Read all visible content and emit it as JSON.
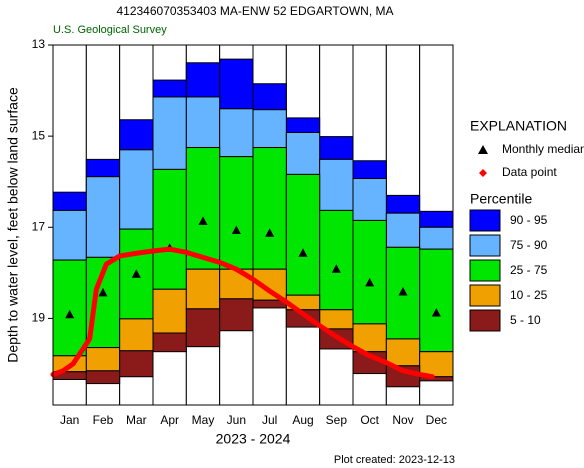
{
  "chart_data": {
    "type": "percentile",
    "title": "412346070353403 MA-ENW   52 EDGARTOWN, MA",
    "subtitle": "U.S. Geological Survey",
    "y_label": "Depth to water level, feet below land surface",
    "x_label": "2023 - 2024",
    "footer": "Plot created: 2023-12-13",
    "categories": [
      "Jan",
      "Feb",
      "Mar",
      "Apr",
      "May",
      "Jun",
      "Jul",
      "Aug",
      "Sep",
      "Oct",
      "Nov",
      "Dec"
    ],
    "ylim": [
      13,
      20.9
    ],
    "yticks": [
      13,
      15,
      17,
      19
    ],
    "y_inverted": true,
    "xlim": [
      0,
      12
    ],
    "legend_title": "EXPLANATION",
    "legend_subtitle": "Percentile",
    "series": [
      {
        "name": "90 - 95",
        "color": "#0000ff",
        "top": [
          16.23,
          15.51,
          14.64,
          13.77,
          13.39,
          13.31,
          13.85,
          14.6,
          15.01,
          15.54,
          16.3,
          16.65
        ],
        "bottom": [
          16.63,
          15.89,
          15.3,
          14.14,
          14.14,
          14.4,
          14.42,
          14.92,
          15.51,
          15.93,
          16.69,
          17.0
        ]
      },
      {
        "name": "75 - 90",
        "color": "#66b3ff",
        "top": [
          16.63,
          15.89,
          15.3,
          14.14,
          14.14,
          14.4,
          14.42,
          14.92,
          15.51,
          15.93,
          16.69,
          17.0
        ],
        "bottom": [
          17.72,
          17.66,
          17.04,
          15.73,
          15.25,
          15.45,
          15.25,
          15.84,
          16.63,
          16.85,
          17.44,
          17.48
        ]
      },
      {
        "name": "25 - 75",
        "color": "#00e600",
        "top": [
          17.72,
          17.66,
          17.04,
          15.73,
          15.25,
          15.45,
          15.25,
          15.84,
          16.63,
          16.85,
          17.44,
          17.48
        ],
        "bottom": [
          19.82,
          19.64,
          19.01,
          18.36,
          17.92,
          17.92,
          17.92,
          18.49,
          18.81,
          19.12,
          19.45,
          19.73
        ]
      },
      {
        "name": "10 - 25",
        "color": "#f0a000",
        "top": [
          19.82,
          19.64,
          19.01,
          18.36,
          17.92,
          17.92,
          17.92,
          18.49,
          18.81,
          19.12,
          19.45,
          19.73
        ],
        "bottom": [
          20.17,
          20.15,
          19.71,
          19.32,
          18.79,
          18.57,
          18.6,
          18.81,
          19.23,
          19.73,
          20.04,
          20.28
        ]
      },
      {
        "name": "5 - 10",
        "color": "#8b1a1a",
        "top": [
          20.17,
          20.15,
          19.71,
          19.32,
          18.79,
          18.57,
          18.6,
          18.81,
          19.23,
          19.73,
          20.04,
          20.28
        ],
        "bottom": [
          20.34,
          20.43,
          20.28,
          19.73,
          19.62,
          19.27,
          18.77,
          19.19,
          19.67,
          20.21,
          20.5,
          20.37
        ]
      }
    ],
    "median": {
      "name": "Monthly median",
      "color": "#000000",
      "values": [
        18.92,
        18.44,
        18.03,
        17.46,
        16.87,
        17.07,
        17.13,
        17.57,
        17.92,
        18.22,
        18.42,
        18.88
      ]
    },
    "data_points": {
      "name": "Data point",
      "color": "#ff0000",
      "x": [
        0,
        0.3,
        0.6,
        1.1,
        1.3,
        1.6,
        2,
        2.5,
        3,
        3.5,
        4,
        4.5,
        5,
        5.5,
        6,
        6.5,
        7,
        7.5,
        8,
        8.5,
        9,
        9.5,
        10,
        10.5,
        11,
        11.38
      ],
      "values": [
        20.23,
        20.15,
        20.0,
        19.45,
        18.36,
        17.81,
        17.63,
        17.57,
        17.52,
        17.48,
        17.55,
        17.66,
        17.77,
        17.92,
        18.14,
        18.4,
        18.64,
        18.9,
        19.16,
        19.4,
        19.62,
        19.82,
        19.97,
        20.15,
        20.23,
        20.28
      ]
    }
  }
}
